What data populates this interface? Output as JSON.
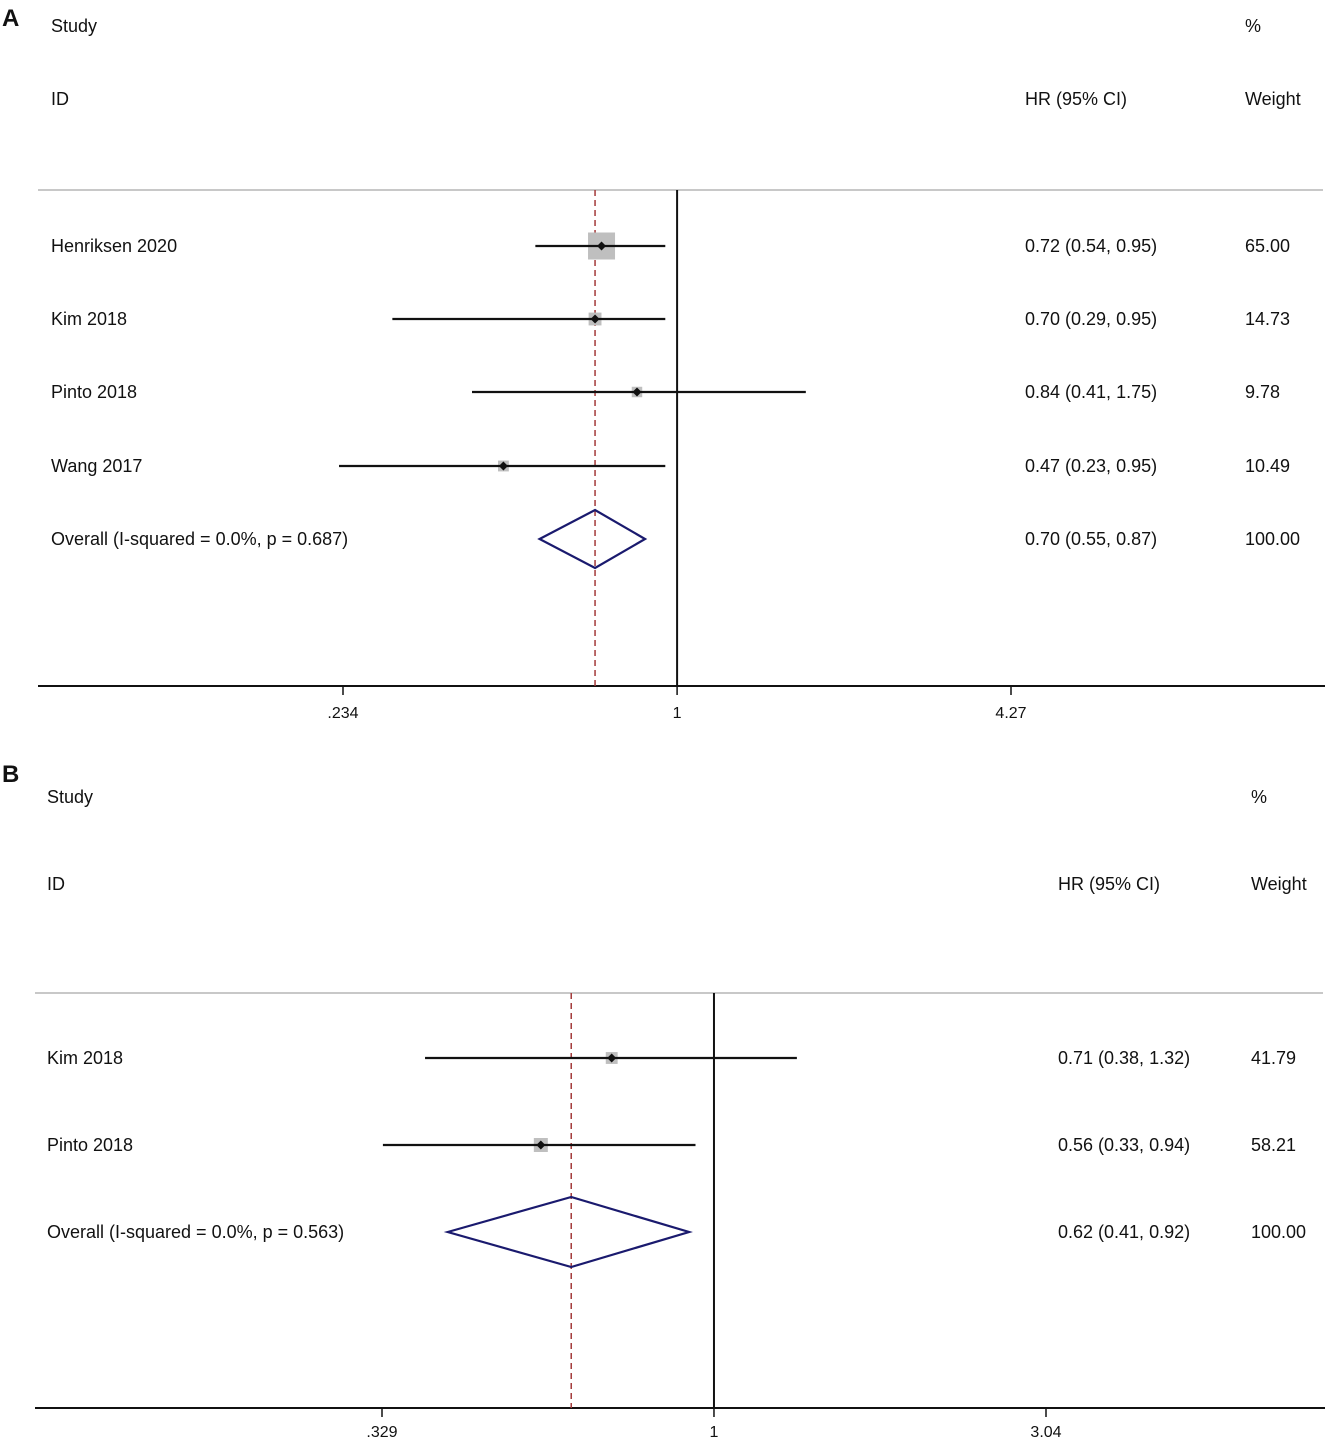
{
  "chart_data": [
    {
      "type": "forest",
      "panel": "A",
      "scale": "log",
      "headers": {
        "study": "Study",
        "id": "ID",
        "effect": "HR (95% CI)",
        "pct": "%",
        "weight": "Weight"
      },
      "studies": [
        {
          "label": "Henriksen 2020",
          "hr": 0.72,
          "lower": 0.54,
          "upper": 0.95,
          "ci_text": "0.72 (0.54, 0.95)",
          "weight": "65.00"
        },
        {
          "label": "Kim 2018",
          "hr": 0.7,
          "lower": 0.29,
          "upper": 0.95,
          "ci_text": "0.70 (0.29, 0.95)",
          "weight": "14.73"
        },
        {
          "label": "Pinto 2018",
          "hr": 0.84,
          "lower": 0.41,
          "upper": 1.75,
          "ci_text": "0.84 (0.41, 1.75)",
          "weight": "9.78"
        },
        {
          "label": "Wang 2017",
          "hr": 0.47,
          "lower": 0.23,
          "upper": 0.95,
          "ci_text": "0.47 (0.23, 0.95)",
          "weight": "10.49"
        }
      ],
      "overall": {
        "label": "Overall  (I-squared = 0.0%, p = 0.687)",
        "hr": 0.7,
        "lower": 0.55,
        "upper": 0.87,
        "ci_text": "0.70 (0.55, 0.87)",
        "weight": "100.00"
      },
      "xticks": [
        {
          "value": 0.234,
          "label": ".234"
        },
        {
          "value": 1,
          "label": "1"
        },
        {
          "value": 4.27,
          "label": "4.27"
        }
      ],
      "null_line": 1,
      "colors": {
        "overall_diamond": "#1a1a6e",
        "overall_line": "#a33a3a",
        "weight_box": "#bfbfbf"
      }
    },
    {
      "type": "forest",
      "panel": "B",
      "scale": "log",
      "headers": {
        "study": "Study",
        "id": "ID",
        "effect": "HR (95% CI)",
        "pct": "%",
        "weight": "Weight"
      },
      "studies": [
        {
          "label": "Kim 2018",
          "hr": 0.71,
          "lower": 0.38,
          "upper": 1.32,
          "ci_text": "0.71 (0.38, 1.32)",
          "weight": "41.79"
        },
        {
          "label": "Pinto 2018",
          "hr": 0.56,
          "lower": 0.33,
          "upper": 0.94,
          "ci_text": "0.56 (0.33, 0.94)",
          "weight": "58.21"
        }
      ],
      "overall": {
        "label": "Overall  (I-squared = 0.0%, p = 0.563)",
        "hr": 0.62,
        "lower": 0.41,
        "upper": 0.92,
        "ci_text": "0.62 (0.41, 0.92)",
        "weight": "100.00"
      },
      "xticks": [
        {
          "value": 0.329,
          "label": ".329"
        },
        {
          "value": 1,
          "label": "1"
        },
        {
          "value": 3.04,
          "label": "3.04"
        }
      ],
      "null_line": 1,
      "colors": {
        "overall_diamond": "#1a1a6e",
        "overall_line": "#a33a3a",
        "weight_box": "#bfbfbf"
      }
    }
  ]
}
